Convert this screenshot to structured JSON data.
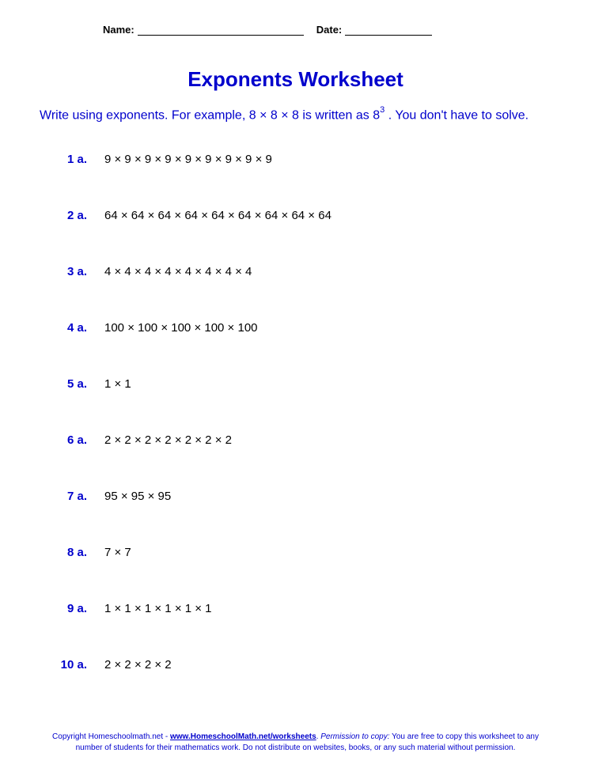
{
  "header": {
    "name_label": "Name:",
    "date_label": "Date:"
  },
  "title": "Exponents Worksheet",
  "instructions_pre": "Write using exponents. For example, 8 × 8 × 8 is written as 8",
  "instructions_exp": "3",
  "instructions_post": " . You don't have to solve.",
  "problems": [
    {
      "num": "1 a.",
      "expr": "9 × 9 × 9 × 9 × 9 × 9 × 9 × 9 × 9"
    },
    {
      "num": "2 a.",
      "expr": "64 × 64 × 64 × 64 × 64 × 64 × 64 × 64 × 64"
    },
    {
      "num": "3 a.",
      "expr": "4 × 4 × 4 × 4 × 4 × 4 × 4 × 4"
    },
    {
      "num": "4 a.",
      "expr": "100 × 100 × 100 × 100 × 100"
    },
    {
      "num": "5 a.",
      "expr": "1 × 1"
    },
    {
      "num": "6 a.",
      "expr": "2 × 2 × 2 × 2 × 2 × 2 × 2"
    },
    {
      "num": "7 a.",
      "expr": "95 × 95 × 95"
    },
    {
      "num": "8 a.",
      "expr": "7 × 7"
    },
    {
      "num": "9 a.",
      "expr": "1 × 1 × 1 × 1 × 1 × 1"
    },
    {
      "num": "10 a.",
      "expr": "2 × 2 × 2 × 2"
    }
  ],
  "footer": {
    "line1_pre": "Copyright Homeschoolmath.net - ",
    "line1_link": "www.HomeschoolMath.net/worksheets",
    "line1_mid": ". ",
    "line1_perm": "Permission to copy:",
    "line1_post": " You are free to copy this worksheet to any",
    "line2": "number of students for their mathematics work. Do not distribute on websites, books, or any such material without permission."
  },
  "colors": {
    "primary_blue": "#0000cc",
    "text_black": "#000000",
    "background": "#ffffff"
  },
  "typography": {
    "title_fontsize": 26,
    "instructions_fontsize": 16,
    "problem_fontsize": 15,
    "header_fontsize": 13,
    "footer_fontsize": 10
  }
}
